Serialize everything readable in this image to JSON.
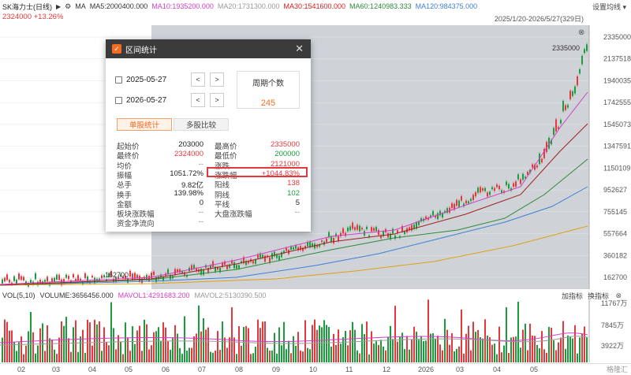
{
  "header": {
    "stock_name": "SK海力士(日线)",
    "indicators": [
      {
        "label": "MA",
        "color": "#333333"
      },
      {
        "label": "MA5:2000400.000",
        "color": "#333333"
      },
      {
        "label": "MA10:1935200.000",
        "color": "#d23fc4"
      },
      {
        "label": "MA20:1731300.000",
        "color": "#999999"
      },
      {
        "label": "MA30:1541600.000",
        "color": "#d21e1e"
      },
      {
        "label": "MA60:1240983.333",
        "color": "#2a8a3a"
      },
      {
        "label": "MA120:984375.000",
        "color": "#3d7fd6"
      }
    ],
    "settings_label": "设置均线",
    "price_line": "2324000 +13.26%",
    "date_range": "2025/1/20-2026/5/27(329日)"
  },
  "price_axis": [
    "2335000",
    "2137518",
    "1940035",
    "1742555",
    "1545073",
    "1347591",
    "1150109",
    "952627",
    "755145",
    "557664",
    "360182",
    "162700"
  ],
  "chart_labels": {
    "high": "2335000",
    "low": "162700"
  },
  "volume": {
    "labels": [
      {
        "text": "VOL(5,10)",
        "color": "#333333"
      },
      {
        "text": "VOLUME:3656456.000",
        "color": "#333333"
      },
      {
        "text": "MAVOL1:4291683.200",
        "color": "#d23fc4"
      },
      {
        "text": "MAVOL2:5130390.500",
        "color": "#999999"
      }
    ],
    "add_indicator": "加指标",
    "switch_indicator": "换指标",
    "axis": [
      "11767万",
      "7845万",
      "3922万"
    ]
  },
  "x_axis": [
    "02",
    "03",
    "04",
    "05",
    "06",
    "07",
    "08",
    "09",
    "10",
    "11",
    "12",
    "2026",
    "03",
    "04",
    "05"
  ],
  "dialog": {
    "title": "区间统计",
    "start_date": "2025-05-27",
    "end_date": "2026-05-27",
    "prev": "<",
    "next": ">",
    "cycle_title": "周期个数",
    "cycle_value": "245",
    "tab_single": "单股统计",
    "tab_multi": "多股比较",
    "left_stats": [
      {
        "label": "起始价",
        "value": "203000",
        "color": "dark"
      },
      {
        "label": "最终价",
        "value": "2324000",
        "color": "red"
      },
      {
        "label": "均价",
        "value": "--",
        "color": "gray"
      },
      {
        "label": "振幅",
        "value": "1051.72%",
        "color": "dark"
      },
      {
        "label": "总手",
        "value": "9.82亿",
        "color": "dark"
      },
      {
        "label": "换手",
        "value": "139.98%",
        "color": "dark"
      },
      {
        "label": "金额",
        "value": "0",
        "color": "dark"
      },
      {
        "label": "板块涨跌幅",
        "value": "--",
        "color": "gray"
      },
      {
        "label": "资金净流向",
        "value": "--",
        "color": "gray"
      }
    ],
    "right_stats": [
      {
        "label": "最高价",
        "value": "2335000",
        "color": "red"
      },
      {
        "label": "最低价",
        "value": "200000",
        "color": "green"
      },
      {
        "label": "涨跌",
        "value": "2121000",
        "color": "red"
      },
      {
        "label": "涨跌幅",
        "value": "+1044.83%",
        "color": "red"
      },
      {
        "label": "阳线",
        "value": "138",
        "color": "red"
      },
      {
        "label": "阴线",
        "value": "102",
        "color": "green"
      },
      {
        "label": "平线",
        "value": "5",
        "color": "dark"
      },
      {
        "label": "大盘涨跌幅",
        "value": "--",
        "color": "gray"
      }
    ]
  },
  "watermark": "格隆汇"
}
